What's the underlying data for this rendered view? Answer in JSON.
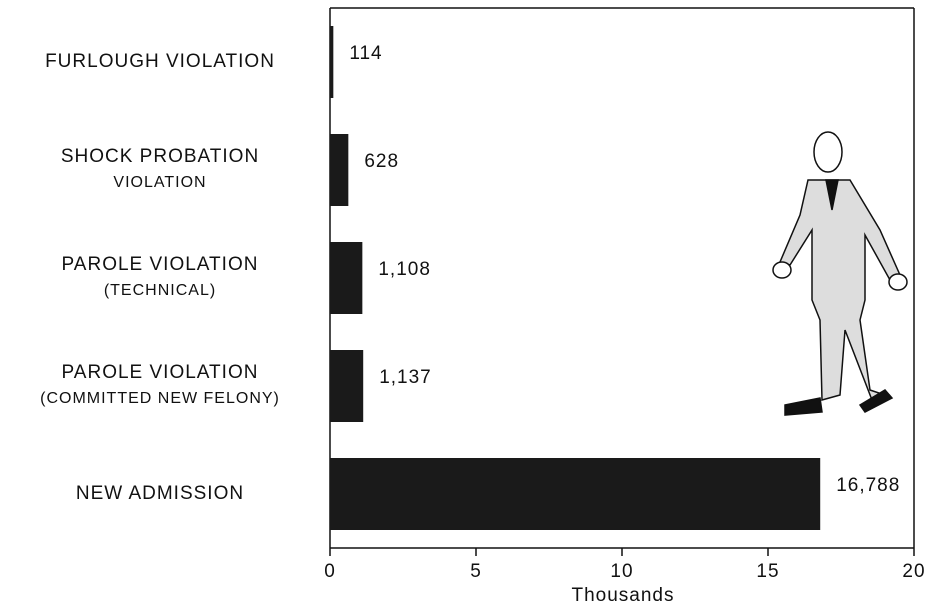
{
  "chart_data": {
    "type": "barh",
    "categories": [
      [
        "FURLOUGH VIOLATION"
      ],
      [
        "SHOCK PROBATION",
        "VIOLATION"
      ],
      [
        "PAROLE VIOLATION",
        "(TECHNICAL)"
      ],
      [
        "PAROLE VIOLATION",
        "(COMMITTED NEW FELONY)"
      ],
      [
        "NEW ADMISSION"
      ]
    ],
    "values": [
      0.114,
      0.628,
      1.108,
      1.137,
      16.788
    ],
    "value_labels": [
      "114",
      "628",
      "1,108",
      "1,137",
      "16,788"
    ],
    "color": "#1a1a1a",
    "xlabel": "Thousands",
    "xlim": [
      0,
      20
    ],
    "xticks": [
      0,
      5,
      10,
      15,
      20
    ]
  }
}
